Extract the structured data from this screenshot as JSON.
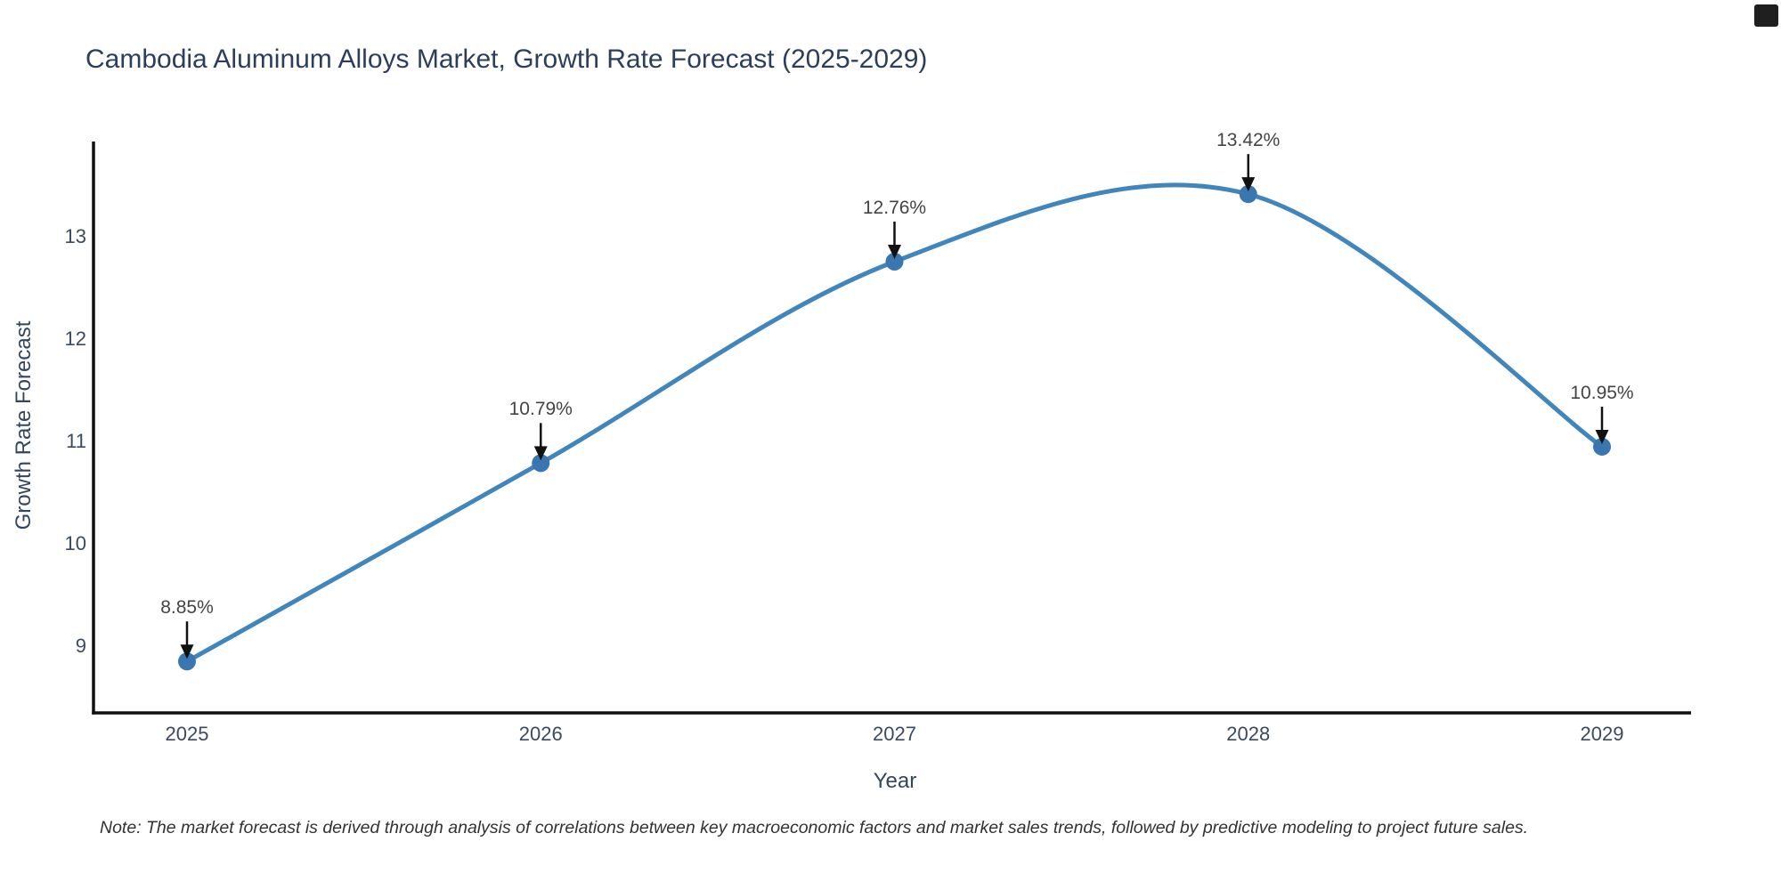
{
  "title": "Cambodia Aluminum Alloys Market, Growth Rate Forecast (2025-2029)",
  "note": "Note: The market forecast is derived through analysis of correlations between key macroeconomic factors and market sales trends, followed by predictive modeling to project future sales.",
  "x_axis": {
    "label": "Year",
    "ticks": [
      "2025",
      "2026",
      "2027",
      "2028",
      "2029"
    ]
  },
  "y_axis": {
    "label": "Growth Rate Forecast",
    "ticks": [
      "9",
      "10",
      "11",
      "12",
      "13"
    ]
  },
  "colors": {
    "line": "#4185bd",
    "marker": "#3a76b0",
    "axis": "#111111",
    "arrow": "#111111",
    "title_text": "#2b3f5c",
    "tick_text": "#3b4a5e",
    "annotation_text": "#444444",
    "note_text": "#333333",
    "background": "#ffffff"
  },
  "chart_data": {
    "type": "line",
    "title": "Cambodia Aluminum Alloys Market, Growth Rate Forecast (2025-2029)",
    "xlabel": "Year",
    "ylabel": "Growth Rate Forecast",
    "x": [
      2025,
      2026,
      2027,
      2028,
      2029
    ],
    "values": [
      8.85,
      10.79,
      12.76,
      13.42,
      10.95
    ],
    "point_labels": [
      "8.85%",
      "10.79%",
      "12.76%",
      "13.42%",
      "10.95%"
    ],
    "yticks": [
      9,
      10,
      11,
      12,
      13
    ],
    "ylim": [
      8.35,
      13.95
    ],
    "line_shape": "spline",
    "grid": false,
    "legend": "none",
    "annotation_style": "value label with downward black arrow above each marker"
  }
}
